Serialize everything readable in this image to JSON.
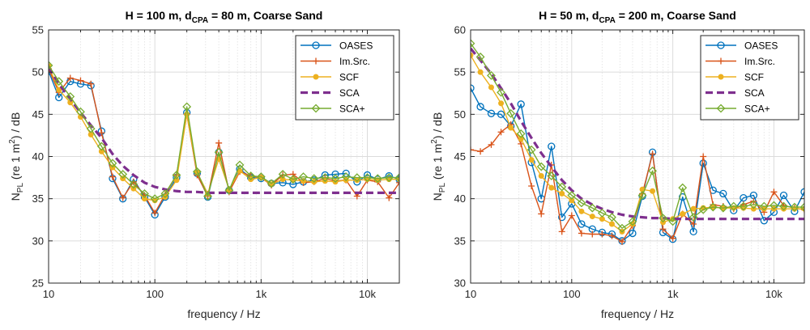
{
  "figure": {
    "ylabel": {
      "main": "N",
      "sub1": "PL",
      "mid": " (re 1 m",
      "sup": "2",
      "end": ") / dB"
    },
    "xlabel": "frequency / Hz",
    "xtick_labels": [
      "10",
      "100",
      "1k",
      "10k"
    ],
    "legend": [
      "OASES",
      "Im.Src.",
      "SCF",
      "SCA",
      "SCA+"
    ],
    "colors": {
      "OASES": "#0072BD",
      "Im.Src.": "#D95319",
      "SCF": "#EDB120",
      "SCA": "#7E2F8E",
      "SCA+": "#77AC30"
    }
  },
  "chart_data": [
    {
      "type": "line",
      "title": {
        "main": "H = 100 m, d",
        "sub": "CPA",
        "rest": " = 80 m, Coarse Sand"
      },
      "xscale": "log",
      "xlim": [
        10,
        20000
      ],
      "ylim": [
        25,
        55
      ],
      "yticks": [
        "25",
        "30",
        "35",
        "40",
        "45",
        "50",
        "55"
      ],
      "legend_position": "top-right",
      "grid": true,
      "x": [
        10,
        12.5,
        16,
        20,
        25,
        31.5,
        40,
        50,
        63,
        80,
        100,
        125,
        160,
        200,
        250,
        315,
        400,
        500,
        630,
        800,
        1000,
        1250,
        1600,
        2000,
        2500,
        3150,
        4000,
        5000,
        6300,
        8000,
        10000,
        12500,
        16000,
        20000
      ],
      "series": [
        {
          "name": "OASES",
          "values": [
            50.1,
            47.0,
            48.9,
            48.6,
            48.4,
            43.0,
            37.4,
            35.0,
            37.3,
            35.2,
            33.1,
            35.2,
            37.5,
            45.2,
            38.0,
            35.2,
            40.5,
            36.0,
            38.5,
            37.5,
            37.4,
            36.8,
            36.9,
            36.7,
            37.0,
            37.2,
            37.8,
            37.9,
            38.0,
            37.0,
            37.8,
            37.3,
            37.7,
            37.3
          ]
        },
        {
          "name": "Im.Src.",
          "values": [
            50.4,
            47.6,
            49.3,
            49.0,
            48.6,
            42.8,
            37.6,
            35.1,
            37.0,
            35.4,
            33.3,
            35.5,
            37.8,
            45.0,
            37.8,
            35.3,
            41.6,
            35.8,
            38.2,
            37.7,
            37.5,
            36.6,
            37.8,
            37.9,
            36.9,
            37.0,
            37.4,
            37.1,
            37.2,
            35.3,
            37.2,
            37.0,
            35.1,
            36.9
          ]
        },
        {
          "name": "SCF",
          "values": [
            50.7,
            47.9,
            46.4,
            44.7,
            42.6,
            40.6,
            38.7,
            37.4,
            36.2,
            35.0,
            34.8,
            35.2,
            37.2,
            45.0,
            38.1,
            35.6,
            39.7,
            36.1,
            38.3,
            37.3,
            37.5,
            36.7,
            37.3,
            37.2,
            37.1,
            37.0,
            37.1,
            37.0,
            37.2,
            37.2,
            37.3,
            37.2,
            37.3,
            37.3
          ]
        },
        {
          "name": "SCA",
          "values": [
            50.6,
            48.6,
            46.8,
            45.2,
            43.7,
            42.2,
            40.3,
            38.9,
            37.8,
            36.9,
            36.4,
            36.1,
            35.9,
            35.8,
            35.8,
            35.7,
            35.7,
            35.7,
            35.7,
            35.7,
            35.7,
            35.7,
            35.7,
            35.7,
            35.7,
            35.7,
            35.7,
            35.7,
            35.7,
            35.7,
            35.7,
            35.7,
            35.7,
            35.7
          ]
        },
        {
          "name": "SCA+",
          "values": [
            50.8,
            48.9,
            47.1,
            45.3,
            43.3,
            41.2,
            39.2,
            37.9,
            36.7,
            35.6,
            35.0,
            35.6,
            37.8,
            45.9,
            38.2,
            35.3,
            40.5,
            36.0,
            39.0,
            37.7,
            37.6,
            36.8,
            37.9,
            37.3,
            37.6,
            37.4,
            37.5,
            37.4,
            37.6,
            37.5,
            37.5,
            37.4,
            37.5,
            37.5
          ]
        }
      ]
    },
    {
      "type": "line",
      "title": {
        "main": "H = 50 m, d",
        "sub": "CPA",
        "rest": " = 200 m, Coarse Sand"
      },
      "xscale": "log",
      "xlim": [
        10,
        20000
      ],
      "ylim": [
        30,
        60
      ],
      "yticks": [
        "30",
        "35",
        "40",
        "45",
        "50",
        "55",
        "60"
      ],
      "legend_position": "top-right",
      "grid": true,
      "x": [
        10,
        12.5,
        16,
        20,
        25,
        31.5,
        40,
        50,
        63,
        80,
        100,
        125,
        160,
        200,
        250,
        315,
        400,
        500,
        630,
        800,
        1000,
        1250,
        1600,
        2000,
        2500,
        3150,
        4000,
        5000,
        6300,
        8000,
        10000,
        12500,
        16000,
        20000
      ],
      "series": [
        {
          "name": "OASES",
          "values": [
            53.1,
            50.9,
            50.1,
            50.0,
            48.6,
            51.2,
            44.3,
            40.0,
            46.2,
            37.8,
            39.4,
            37.0,
            36.4,
            36.0,
            35.8,
            35.0,
            35.9,
            40.3,
            45.5,
            36.0,
            35.2,
            40.2,
            36.1,
            44.2,
            41.0,
            40.6,
            38.6,
            40.1,
            40.4,
            37.4,
            38.4,
            40.4,
            38.5,
            40.8
          ]
        },
        {
          "name": "Im.Src.",
          "values": [
            45.8,
            45.6,
            46.4,
            47.9,
            48.8,
            46.5,
            41.5,
            38.2,
            44.0,
            36.1,
            38.0,
            35.9,
            35.8,
            35.8,
            35.6,
            34.9,
            36.8,
            40.6,
            45.3,
            36.4,
            35.3,
            38.2,
            37.0,
            45.0,
            39.3,
            39.1,
            38.8,
            39.3,
            39.7,
            38.4,
            40.8,
            39.2,
            38.9,
            38.7
          ]
        },
        {
          "name": "SCF",
          "values": [
            57.0,
            55.0,
            53.2,
            51.3,
            48.4,
            47.1,
            44.6,
            42.7,
            41.3,
            40.6,
            39.8,
            38.5,
            37.9,
            37.6,
            37.0,
            36.1,
            37.0,
            41.1,
            40.9,
            37.2,
            37.6,
            38.2,
            38.8,
            38.9,
            39.0,
            38.9,
            38.9,
            38.9,
            38.8,
            38.8,
            38.8,
            38.8,
            38.8,
            38.8
          ]
        },
        {
          "name": "SCA",
          "values": [
            57.8,
            56.4,
            54.8,
            53.1,
            51.3,
            49.2,
            47.2,
            45.4,
            43.8,
            42.2,
            41.0,
            40.0,
            39.3,
            38.8,
            38.4,
            38.1,
            37.9,
            37.8,
            37.7,
            37.7,
            37.6,
            37.6,
            37.6,
            37.6,
            37.6,
            37.6,
            37.6,
            37.6,
            37.6,
            37.6,
            37.6,
            37.6,
            37.6,
            37.6
          ]
        },
        {
          "name": "SCA+",
          "values": [
            58.4,
            56.8,
            54.6,
            52.6,
            50.1,
            47.7,
            45.8,
            43.8,
            42.7,
            41.4,
            40.4,
            39.5,
            38.9,
            38.3,
            37.8,
            36.5,
            37.3,
            40.4,
            43.3,
            37.7,
            37.3,
            41.3,
            37.8,
            38.7,
            39.0,
            38.9,
            39.1,
            39.1,
            39.3,
            39.1,
            39.2,
            39.1,
            39.0,
            39.0
          ]
        }
      ]
    }
  ]
}
